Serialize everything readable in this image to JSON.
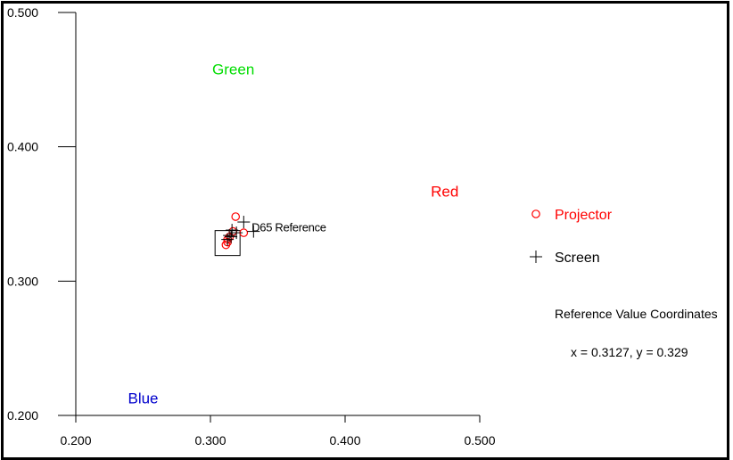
{
  "chart_data": {
    "type": "scatter",
    "title": "",
    "xlabel": "",
    "ylabel": "",
    "xlim": [
      0.2,
      0.5
    ],
    "ylim": [
      0.2,
      0.5
    ],
    "x_ticks": [
      "0.200",
      "0.300",
      "0.400",
      "0.500"
    ],
    "y_ticks": [
      "0.200",
      "0.300",
      "0.400",
      "0.500"
    ],
    "grid": false,
    "series": [
      {
        "name": "Projector",
        "marker": "circle",
        "color": "#ff0000",
        "points": [
          {
            "x": 0.3187,
            "y": 0.348
          },
          {
            "x": 0.3247,
            "y": 0.336
          },
          {
            "x": 0.3142,
            "y": 0.333
          },
          {
            "x": 0.3127,
            "y": 0.329
          },
          {
            "x": 0.3115,
            "y": 0.327
          },
          {
            "x": 0.3127,
            "y": 0.331
          },
          {
            "x": 0.3167,
            "y": 0.337
          }
        ]
      },
      {
        "name": "Screen",
        "marker": "plus",
        "color": "#000000",
        "points": [
          {
            "x": 0.3247,
            "y": 0.344
          },
          {
            "x": 0.332,
            "y": 0.337
          },
          {
            "x": 0.3193,
            "y": 0.336
          },
          {
            "x": 0.316,
            "y": 0.338
          },
          {
            "x": 0.314,
            "y": 0.334
          },
          {
            "x": 0.3127,
            "y": 0.331
          },
          {
            "x": 0.3153,
            "y": 0.333
          }
        ]
      }
    ],
    "reference_point": {
      "x": 0.3127,
      "y": 0.329,
      "label": "D65 Reference"
    },
    "region_labels": [
      {
        "text": "Green",
        "x": 0.317,
        "y": 0.454,
        "color": "#00dd00"
      },
      {
        "text": "Red",
        "x": 0.474,
        "y": 0.363,
        "color": "#ff0000"
      },
      {
        "text": "Blue",
        "x": 0.25,
        "y": 0.209,
        "color": "#0000cc"
      }
    ],
    "legend_position": "right",
    "side_text": {
      "heading": "Reference Value Coordinates",
      "value": "x = 0.3127, y = 0.329"
    }
  }
}
